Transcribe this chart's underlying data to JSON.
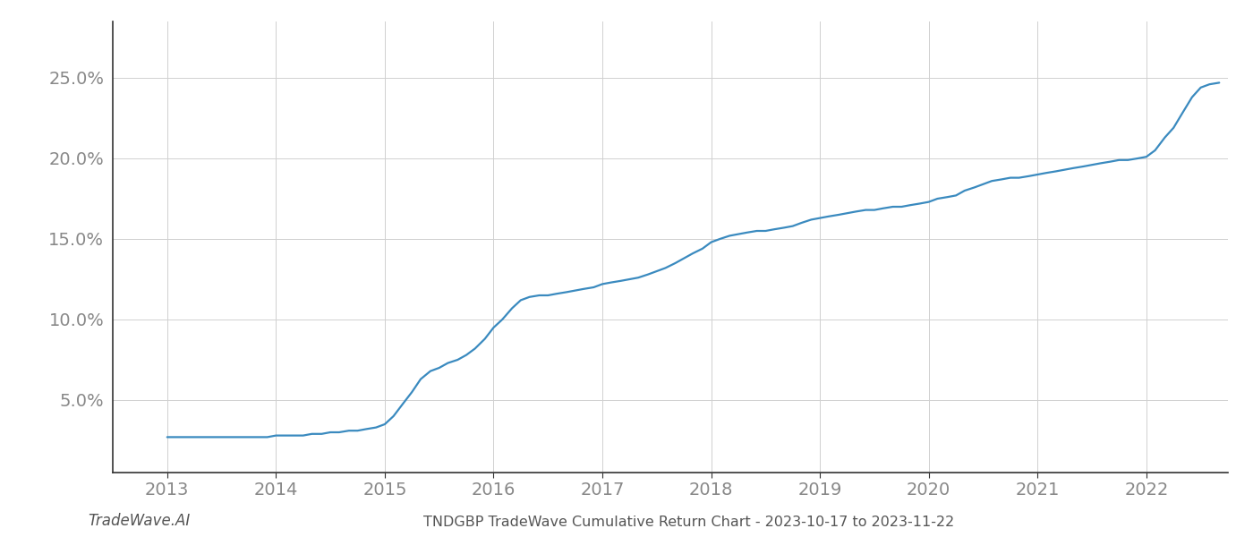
{
  "title": "TNDGBP TradeWave Cumulative Return Chart - 2023-10-17 to 2023-11-22",
  "watermark": "TradeWave.AI",
  "line_color": "#3a8abf",
  "background_color": "#ffffff",
  "grid_color": "#d0d0d0",
  "x_years": [
    2013,
    2014,
    2015,
    2016,
    2017,
    2018,
    2019,
    2020,
    2021,
    2022
  ],
  "y_ticks": [
    0.05,
    0.1,
    0.15,
    0.2,
    0.25
  ],
  "y_tick_labels": [
    "5.0%",
    "10.0%",
    "15.0%",
    "20.0%",
    "25.0%"
  ],
  "ylim": [
    0.005,
    0.285
  ],
  "xlim": [
    2012.5,
    2022.75
  ],
  "data_x": [
    2013.0,
    2013.08,
    2013.17,
    2013.25,
    2013.33,
    2013.42,
    2013.5,
    2013.58,
    2013.67,
    2013.75,
    2013.83,
    2013.92,
    2014.0,
    2014.08,
    2014.17,
    2014.25,
    2014.33,
    2014.42,
    2014.5,
    2014.58,
    2014.67,
    2014.75,
    2014.83,
    2014.92,
    2015.0,
    2015.08,
    2015.17,
    2015.25,
    2015.33,
    2015.42,
    2015.5,
    2015.58,
    2015.67,
    2015.75,
    2015.83,
    2015.92,
    2016.0,
    2016.08,
    2016.17,
    2016.25,
    2016.33,
    2016.42,
    2016.5,
    2016.58,
    2016.67,
    2016.75,
    2016.83,
    2016.92,
    2017.0,
    2017.08,
    2017.17,
    2017.25,
    2017.33,
    2017.42,
    2017.5,
    2017.58,
    2017.67,
    2017.75,
    2017.83,
    2017.92,
    2018.0,
    2018.08,
    2018.17,
    2018.25,
    2018.33,
    2018.42,
    2018.5,
    2018.58,
    2018.67,
    2018.75,
    2018.83,
    2018.92,
    2019.0,
    2019.08,
    2019.17,
    2019.25,
    2019.33,
    2019.42,
    2019.5,
    2019.58,
    2019.67,
    2019.75,
    2019.83,
    2019.92,
    2020.0,
    2020.08,
    2020.17,
    2020.25,
    2020.33,
    2020.42,
    2020.5,
    2020.58,
    2020.67,
    2020.75,
    2020.83,
    2020.92,
    2021.0,
    2021.08,
    2021.17,
    2021.25,
    2021.33,
    2021.42,
    2021.5,
    2021.58,
    2021.67,
    2021.75,
    2021.83,
    2021.92,
    2022.0,
    2022.08,
    2022.17,
    2022.25,
    2022.33,
    2022.42,
    2022.5,
    2022.58,
    2022.67
  ],
  "data_y": [
    0.027,
    0.027,
    0.027,
    0.027,
    0.027,
    0.027,
    0.027,
    0.027,
    0.027,
    0.027,
    0.027,
    0.027,
    0.028,
    0.028,
    0.028,
    0.028,
    0.029,
    0.029,
    0.03,
    0.03,
    0.031,
    0.031,
    0.032,
    0.033,
    0.035,
    0.04,
    0.048,
    0.055,
    0.063,
    0.068,
    0.07,
    0.073,
    0.075,
    0.078,
    0.082,
    0.088,
    0.095,
    0.1,
    0.107,
    0.112,
    0.114,
    0.115,
    0.115,
    0.116,
    0.117,
    0.118,
    0.119,
    0.12,
    0.122,
    0.123,
    0.124,
    0.125,
    0.126,
    0.128,
    0.13,
    0.132,
    0.135,
    0.138,
    0.141,
    0.144,
    0.148,
    0.15,
    0.152,
    0.153,
    0.154,
    0.155,
    0.155,
    0.156,
    0.157,
    0.158,
    0.16,
    0.162,
    0.163,
    0.164,
    0.165,
    0.166,
    0.167,
    0.168,
    0.168,
    0.169,
    0.17,
    0.17,
    0.171,
    0.172,
    0.173,
    0.175,
    0.176,
    0.177,
    0.18,
    0.182,
    0.184,
    0.186,
    0.187,
    0.188,
    0.188,
    0.189,
    0.19,
    0.191,
    0.192,
    0.193,
    0.194,
    0.195,
    0.196,
    0.197,
    0.198,
    0.199,
    0.199,
    0.2,
    0.201,
    0.205,
    0.213,
    0.219,
    0.228,
    0.238,
    0.244,
    0.246,
    0.247
  ],
  "spine_color": "#333333",
  "tick_color": "#888888",
  "tick_fontsize": 14,
  "title_fontsize": 11.5,
  "watermark_fontsize": 12,
  "line_width": 1.6
}
